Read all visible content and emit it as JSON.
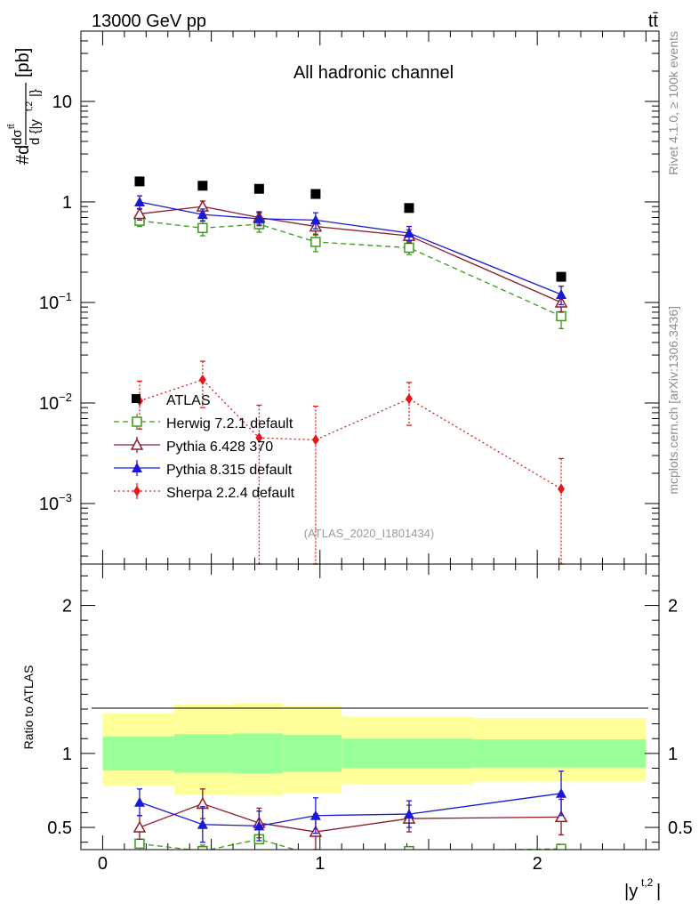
{
  "header": {
    "energy_label": "13000 GeV pp",
    "process_label": "tt̄"
  },
  "side": {
    "rivet_label": "Rivet 4.1.0, ≥ 100k events",
    "mcplots_label": "mcplots.cern.ch [arXiv:1306.3436]"
  },
  "chart_data": {
    "type": "line",
    "title": "All hadronic channel",
    "analysis_id": "(ATLAS_2020_I1801434)",
    "ylabel_main": "#d dσ^tt̄ / d {|y^{t,2}|} [pb]",
    "ylabel_ratio": "Ratio to ATLAS",
    "xlabel": "|y^{t,2}|",
    "xlim": [
      -0.1,
      2.56
    ],
    "ylim_main": [
      0.00025,
      50
    ],
    "ylim_ratio": [
      0.35,
      2.28
    ],
    "yscale_main": "log",
    "x_ticks": [
      "0",
      "1",
      "2"
    ],
    "y_ticks_main": [
      "10",
      "1",
      "10^-1",
      "10^-2",
      "10^-3"
    ],
    "y_ticks_ratio": [
      "2",
      "1",
      "0.5"
    ],
    "legend_position": "middle-left",
    "bins": [
      [
        0.0,
        0.33
      ],
      [
        0.33,
        0.6
      ],
      [
        0.6,
        0.83
      ],
      [
        0.83,
        1.1
      ],
      [
        1.1,
        1.7
      ],
      [
        1.7,
        2.5
      ]
    ],
    "x": [
      0.17,
      0.46,
      0.72,
      0.98,
      1.41,
      2.11
    ],
    "series": [
      {
        "name": "ATLAS",
        "color": "#000000",
        "marker": "square-filled",
        "line": "none",
        "values": [
          1.6,
          1.45,
          1.35,
          1.2,
          0.87,
          0.18
        ],
        "ratio_band_inner": [
          [
            0.885,
            1.115
          ],
          [
            0.87,
            1.13
          ],
          [
            0.865,
            1.135
          ],
          [
            0.875,
            1.125
          ],
          [
            0.9,
            1.1
          ],
          [
            0.905,
            1.095
          ]
        ],
        "ratio_band_outer": [
          [
            0.78,
            1.27
          ],
          [
            0.72,
            1.33
          ],
          [
            0.715,
            1.34
          ],
          [
            0.73,
            1.32
          ],
          [
            0.79,
            1.25
          ],
          [
            0.81,
            1.24
          ]
        ]
      },
      {
        "name": "Herwig 7.2.1 default",
        "color": "#3a9b18",
        "marker": "square-open",
        "line": "dashed",
        "values": [
          0.65,
          0.55,
          0.6,
          0.4,
          0.35,
          0.073
        ],
        "errors": [
          0.08,
          0.09,
          0.1,
          0.08,
          0.05,
          0.018
        ],
        "ratio": [
          0.39,
          0.34,
          0.42,
          0.31,
          0.34,
          0.355
        ],
        "ratio_errors": [
          0.03,
          0.04,
          0.03,
          0.04,
          0.03,
          0.03
        ]
      },
      {
        "name": "Pythia 6.428 370",
        "color": "#8f1a2a",
        "marker": "triangle-open",
        "line": "solid",
        "values": [
          0.76,
          0.9,
          0.7,
          0.57,
          0.46,
          0.1
        ],
        "errors": [
          0.1,
          0.12,
          0.1,
          0.1,
          0.07,
          0.02
        ],
        "ratio": [
          0.5,
          0.66,
          0.53,
          0.47,
          0.56,
          0.57
        ],
        "ratio_errors": [
          0.08,
          0.1,
          0.1,
          0.12,
          0.09,
          0.12
        ]
      },
      {
        "name": "Pythia 8.315 default",
        "color": "#1a1ad6",
        "marker": "triangle-filled",
        "line": "solid",
        "values": [
          1.0,
          0.75,
          0.68,
          0.66,
          0.49,
          0.12
        ],
        "errors": [
          0.15,
          0.1,
          0.1,
          0.12,
          0.08,
          0.025
        ],
        "ratio": [
          0.67,
          0.52,
          0.51,
          0.58,
          0.59,
          0.73
        ],
        "ratio_errors": [
          0.09,
          0.12,
          0.1,
          0.12,
          0.09,
          0.15
        ]
      },
      {
        "name": "Sherpa 2.2.4 default",
        "color": "#e3181a",
        "marker": "diamond-filled",
        "line": "dotted",
        "values": [
          0.0105,
          0.017,
          0.0045,
          0.0043,
          0.011,
          0.0014
        ],
        "err_low": [
          0.005,
          0.008,
          0.0045,
          0.0043,
          0.005,
          0.0014
        ],
        "err_high": [
          0.006,
          0.009,
          0.005,
          0.005,
          0.005,
          0.0014
        ]
      }
    ]
  }
}
